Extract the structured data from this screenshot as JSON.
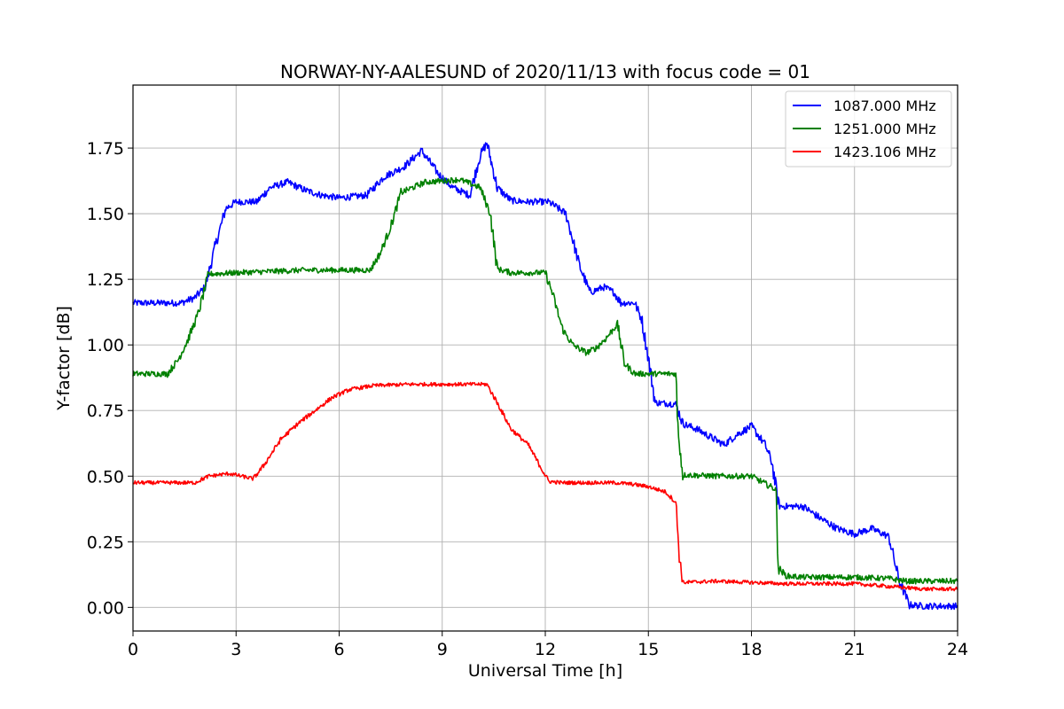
{
  "chart_data": {
    "type": "line",
    "title": "NORWAY-NY-AALESUND of 2020/11/13 with focus code = 01",
    "xlabel": "Universal Time [h]",
    "ylabel": "Y-factor [dB]",
    "xlim": [
      0,
      24
    ],
    "ylim": [
      -0.09,
      1.99
    ],
    "xticks": [
      0,
      3,
      6,
      9,
      12,
      15,
      18,
      21,
      24
    ],
    "xtick_labels": [
      "0",
      "3",
      "6",
      "9",
      "12",
      "15",
      "18",
      "21",
      "24"
    ],
    "yticks": [
      0.0,
      0.25,
      0.5,
      0.75,
      1.0,
      1.25,
      1.5,
      1.75
    ],
    "ytick_labels": [
      "0.00",
      "0.25",
      "0.50",
      "0.75",
      "1.00",
      "1.25",
      "1.50",
      "1.75"
    ],
    "grid": true,
    "legend_position": "top-right",
    "series": [
      {
        "name": "1087.000 MHz",
        "color": "#0000ff",
        "noise": 0.035,
        "x": [
          0,
          1.4,
          1.8,
          2.1,
          2.4,
          2.7,
          3.0,
          3.6,
          4.0,
          4.5,
          5.0,
          5.5,
          6.0,
          6.8,
          7.3,
          7.9,
          8.4,
          8.9,
          9.3,
          9.8,
          10.1,
          10.3,
          10.6,
          11.0,
          11.5,
          12.1,
          12.6,
          13.0,
          13.3,
          13.7,
          14.0,
          14.2,
          14.6,
          14.8,
          15.0,
          15.2,
          15.8,
          16.0,
          16.4,
          16.8,
          17.2,
          17.6,
          18.0,
          18.4,
          18.6,
          18.8,
          19.5,
          20.0,
          20.5,
          21.0,
          21.5,
          22.0,
          22.3,
          22.6,
          23.0,
          23.5,
          24.0
        ],
        "y": [
          1.16,
          1.16,
          1.18,
          1.22,
          1.38,
          1.52,
          1.545,
          1.545,
          1.6,
          1.62,
          1.59,
          1.57,
          1.56,
          1.57,
          1.64,
          1.68,
          1.74,
          1.65,
          1.6,
          1.57,
          1.72,
          1.77,
          1.6,
          1.55,
          1.545,
          1.545,
          1.5,
          1.3,
          1.2,
          1.22,
          1.2,
          1.16,
          1.16,
          1.1,
          0.95,
          0.78,
          0.775,
          0.7,
          0.68,
          0.65,
          0.62,
          0.66,
          0.69,
          0.62,
          0.55,
          0.385,
          0.385,
          0.34,
          0.3,
          0.28,
          0.3,
          0.27,
          0.1,
          0.01,
          0.005,
          0.005,
          0.005
        ]
      },
      {
        "name": "1251.000 MHz",
        "color": "#008000",
        "noise": 0.03,
        "x": [
          0,
          1.0,
          1.3,
          1.6,
          1.9,
          2.2,
          3.0,
          4.0,
          5.0,
          6.0,
          6.9,
          7.2,
          7.5,
          7.8,
          8.5,
          9.5,
          10.1,
          10.4,
          10.6,
          11.0,
          12.0,
          12.2,
          12.5,
          12.8,
          13.2,
          13.5,
          13.8,
          14.1,
          14.3,
          14.6,
          15.0,
          15.8,
          15.85,
          16.0,
          17.0,
          18.0,
          18.7,
          18.8,
          19.0,
          19.5,
          21.0,
          22.0,
          22.5,
          24.0
        ],
        "y": [
          0.89,
          0.89,
          0.94,
          1.02,
          1.12,
          1.27,
          1.275,
          1.28,
          1.285,
          1.285,
          1.285,
          1.35,
          1.45,
          1.58,
          1.62,
          1.63,
          1.6,
          1.5,
          1.29,
          1.275,
          1.275,
          1.2,
          1.06,
          1.0,
          0.97,
          0.99,
          1.03,
          1.08,
          0.93,
          0.89,
          0.89,
          0.89,
          0.7,
          0.505,
          0.5,
          0.5,
          0.45,
          0.15,
          0.12,
          0.115,
          0.115,
          0.11,
          0.1,
          0.1
        ]
      },
      {
        "name": "1423.106 MHz",
        "color": "#ff0000",
        "noise": 0.02,
        "x": [
          0,
          1.8,
          2.2,
          2.8,
          3.5,
          3.8,
          4.3,
          4.8,
          5.3,
          5.8,
          6.3,
          7.0,
          8.0,
          9.0,
          10.0,
          10.3,
          10.6,
          11.0,
          11.5,
          11.8,
          12.1,
          12.5,
          13.0,
          14.0,
          14.5,
          15.0,
          15.5,
          15.8,
          15.9,
          16.0,
          17.0,
          18.0,
          19.0,
          21.0,
          22.0,
          23.0,
          24.0
        ],
        "y": [
          0.475,
          0.475,
          0.5,
          0.51,
          0.49,
          0.54,
          0.64,
          0.7,
          0.75,
          0.8,
          0.83,
          0.845,
          0.85,
          0.85,
          0.85,
          0.85,
          0.78,
          0.68,
          0.62,
          0.55,
          0.48,
          0.475,
          0.475,
          0.475,
          0.47,
          0.46,
          0.44,
          0.4,
          0.2,
          0.095,
          0.1,
          0.095,
          0.09,
          0.09,
          0.08,
          0.07,
          0.07
        ]
      }
    ]
  }
}
